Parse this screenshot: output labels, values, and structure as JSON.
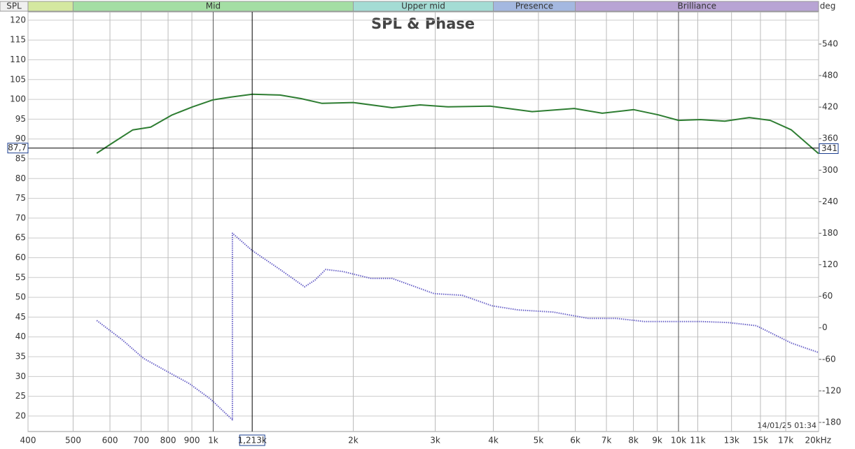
{
  "chart_data": {
    "type": "line",
    "title": "SPL & Phase",
    "y_label": "SPL",
    "y2_label": "deg",
    "timestamp": "14/01/25 01:34",
    "xscale": "log",
    "grid": true,
    "xlim": [
      400,
      20000
    ],
    "ylim": [
      16.1,
      122.1
    ],
    "y2lim": [
      -197.3,
      601.2
    ],
    "xticks": [
      400,
      500,
      600,
      700,
      800,
      900,
      {
        "value": 1000,
        "label": "1k"
      },
      {
        "value": 2000,
        "label": "2k"
      },
      {
        "value": 3000,
        "label": "3k"
      },
      {
        "value": 4000,
        "label": "4k"
      },
      {
        "value": 5000,
        "label": "5k"
      },
      {
        "value": 6000,
        "label": "6k"
      },
      {
        "value": 7000,
        "label": "7k"
      },
      {
        "value": 8000,
        "label": "8k"
      },
      {
        "value": 9000,
        "label": "9k"
      },
      {
        "value": 10000,
        "label": "10k"
      },
      {
        "value": 11000,
        "label": "11k"
      },
      {
        "value": 13000,
        "label": "13k"
      },
      {
        "value": 15000,
        "label": "15k"
      },
      {
        "value": 17000,
        "label": "17k"
      },
      {
        "value": 20000,
        "label": "20kHz"
      }
    ],
    "yticks": [
      20,
      25,
      30,
      35,
      40,
      45,
      50,
      55,
      60,
      65,
      70,
      75,
      80,
      85,
      90,
      95,
      100,
      105,
      110,
      115,
      120
    ],
    "y2ticks": [
      -180,
      -120,
      -60,
      0,
      60,
      120,
      180,
      240,
      300,
      360,
      420,
      480,
      540
    ],
    "bands": [
      {
        "name": null,
        "from": 400,
        "to": 500,
        "color": "#d4e8a0"
      },
      {
        "name": "Mid",
        "from": 500,
        "to": 2000,
        "color": "#a4dea4"
      },
      {
        "name": "Upper mid",
        "from": 2000,
        "to": 4000,
        "color": "#a4dcd4"
      },
      {
        "name": "Presence",
        "from": 4000,
        "to": 6000,
        "color": "#a4b8e0"
      },
      {
        "name": "Brilliance",
        "from": 6000,
        "to": 20000,
        "color": "#b8a4d4"
      }
    ],
    "cursor": {
      "x": {
        "value": 1213,
        "label": "1,213k"
      },
      "y": {
        "value": 87.7,
        "label": "87,7"
      },
      "y2": 341
    },
    "series": [
      {
        "name": "SPL",
        "color": "#2e7d32",
        "axis": "y",
        "x": [
          562,
          606,
          672,
          734,
          814,
          903,
          1000,
          1093,
          1213,
          1392,
          1545,
          1714,
          2000,
          2425,
          2785,
          3200,
          3937,
          4848,
          5970,
          6856,
          8012,
          9045,
          10000,
          11136,
          12573,
          14193,
          15748,
          17475,
          20000
        ],
        "values": [
          86.4,
          88.9,
          92.3,
          93.0,
          96.0,
          98.1,
          99.9,
          100.6,
          101.3,
          101.1,
          100.2,
          99.0,
          99.2,
          97.9,
          98.6,
          98.1,
          98.3,
          96.9,
          97.7,
          96.5,
          97.4,
          96.1,
          94.7,
          94.9,
          94.5,
          95.4,
          94.7,
          92.3,
          86.3
        ]
      },
      {
        "name": "Phase",
        "color": "#6a63c8",
        "axis": "y2",
        "x": [
          562,
          638,
          708,
          800,
          888,
          985,
          1100,
          1100,
          1213,
          1392,
          1572,
          1656,
          1745,
          1902,
          2185,
          2425,
          2984,
          3428,
          3970,
          4524,
          5380,
          6396,
          7346,
          8438,
          10000,
          11136,
          12790,
          14697,
          17475,
          20000
        ],
        "values": [
          14,
          -23,
          -58,
          -84,
          -106,
          -135,
          -175,
          180,
          147,
          111,
          78,
          91,
          111,
          107,
          94,
          94,
          65,
          62,
          42,
          34,
          30,
          18,
          18,
          12,
          12,
          12,
          10,
          4,
          -29,
          -47
        ]
      }
    ]
  }
}
